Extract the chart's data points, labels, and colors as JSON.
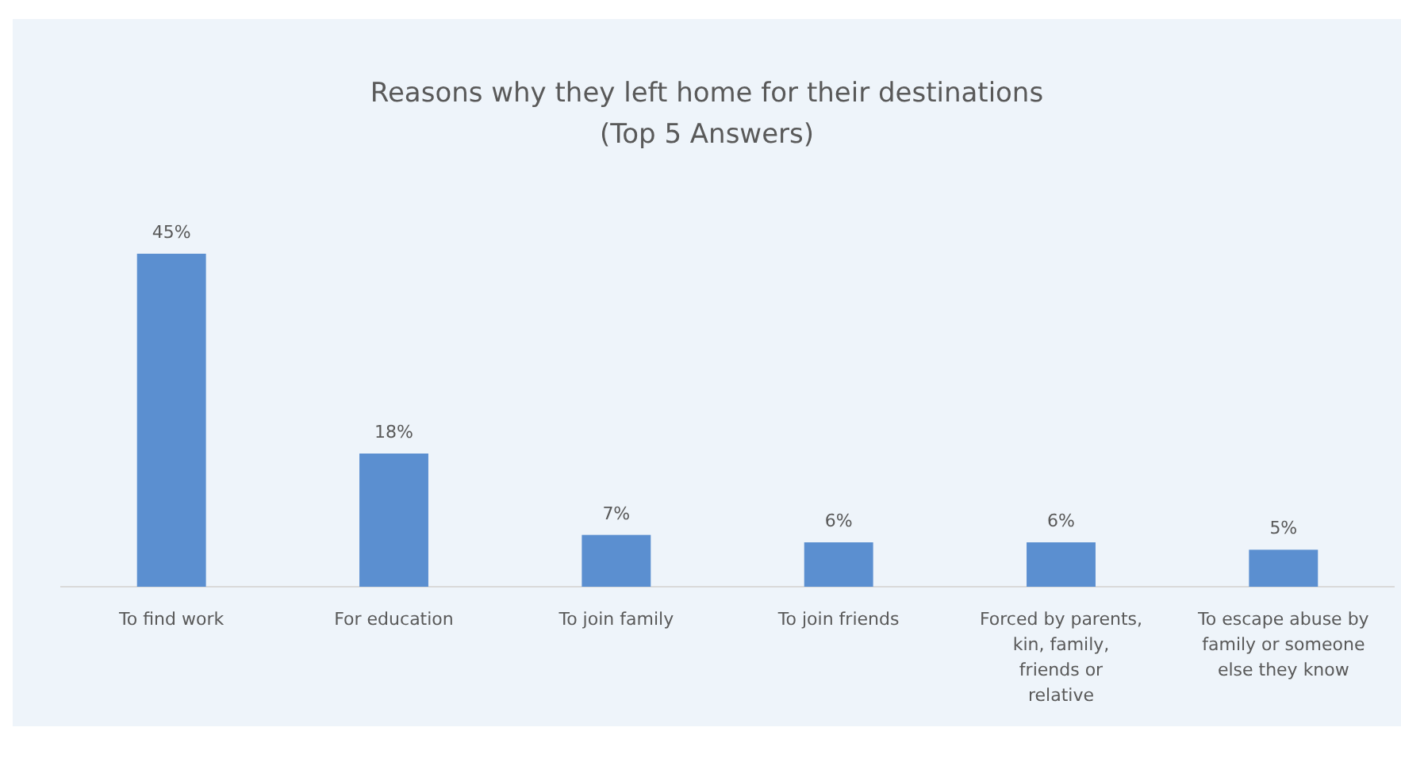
{
  "chart_data": {
    "type": "bar",
    "title": "Reasons why they left home for their destinations",
    "subtitle": "(Top 5 Answers)",
    "categories": [
      "To find work",
      "For education",
      "To join family",
      "To join friends",
      "Forced by parents, kin, family, friends or relative",
      "To escape abuse by family or someone else they know"
    ],
    "values": [
      45,
      18,
      7,
      6,
      6,
      5
    ],
    "color": "#5b8fd0",
    "data_labels": true,
    "value_labels": [
      "45%",
      "18%",
      "7%",
      "6%",
      "6%",
      "5%"
    ]
  }
}
